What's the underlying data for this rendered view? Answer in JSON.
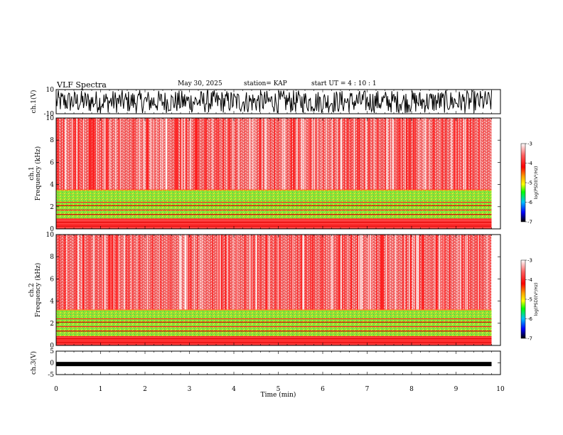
{
  "header": {
    "title": "VLF Spectra",
    "date": "May 30, 2025",
    "station": "station= KAP",
    "start": "start  UT =   4 : 10 : 1"
  },
  "chart_data": [
    {
      "type": "line",
      "name": "ch1-waveform",
      "ylabel": "ch.1(V)",
      "ylim": [
        -10,
        10
      ],
      "yticks": [
        "10",
        "-10"
      ],
      "description_values": {
        "amplitude_min": -10,
        "amplitude_max": 10
      }
    },
    {
      "type": "heatmap",
      "name": "ch1-spectrogram",
      "ylabel": "Frequency (kHz)",
      "ylabel2": "ch.1",
      "ylim": [
        0,
        10
      ],
      "yticks": [
        "0",
        "2",
        "4",
        "6",
        "8",
        "10"
      ],
      "colorbar": {
        "label": "log(PSD)(V²/Hz)",
        "range": [
          -7,
          -3
        ],
        "ticks": [
          "-3",
          "-4",
          "-5",
          "-6",
          "-7"
        ]
      },
      "bands_khz": {
        "low_power_band": [
          0.9,
          3.5
        ],
        "high_power_band": [
          3.5,
          10
        ]
      }
    },
    {
      "type": "heatmap",
      "name": "ch2-spectrogram",
      "ylabel": "Frequency (kHz)",
      "ylabel2": "ch.2",
      "ylim": [
        0,
        10
      ],
      "yticks": [
        "0",
        "2",
        "4",
        "6",
        "8",
        "10"
      ],
      "colorbar": {
        "label": "log(PSD)(V²/Hz)",
        "range": [
          -7,
          -3
        ],
        "ticks": [
          "-3",
          "-4",
          "-5",
          "-6",
          "-7"
        ]
      },
      "bands_khz": {
        "low_power_band": [
          0.8,
          3.2
        ],
        "high_power_band": [
          3.2,
          10
        ]
      }
    },
    {
      "type": "line",
      "name": "ch3-waveform",
      "ylabel": "ch.3(V)",
      "ylim": [
        -5,
        5
      ],
      "yticks": [
        "5",
        "0",
        "-5"
      ],
      "level": -0.5
    }
  ],
  "xaxis": {
    "label": "Time  (min)",
    "xlim": [
      0,
      10
    ],
    "ticks": [
      "0",
      "1",
      "2",
      "3",
      "4",
      "5",
      "6",
      "7",
      "8",
      "9",
      "10"
    ],
    "data_end": 9.8
  }
}
